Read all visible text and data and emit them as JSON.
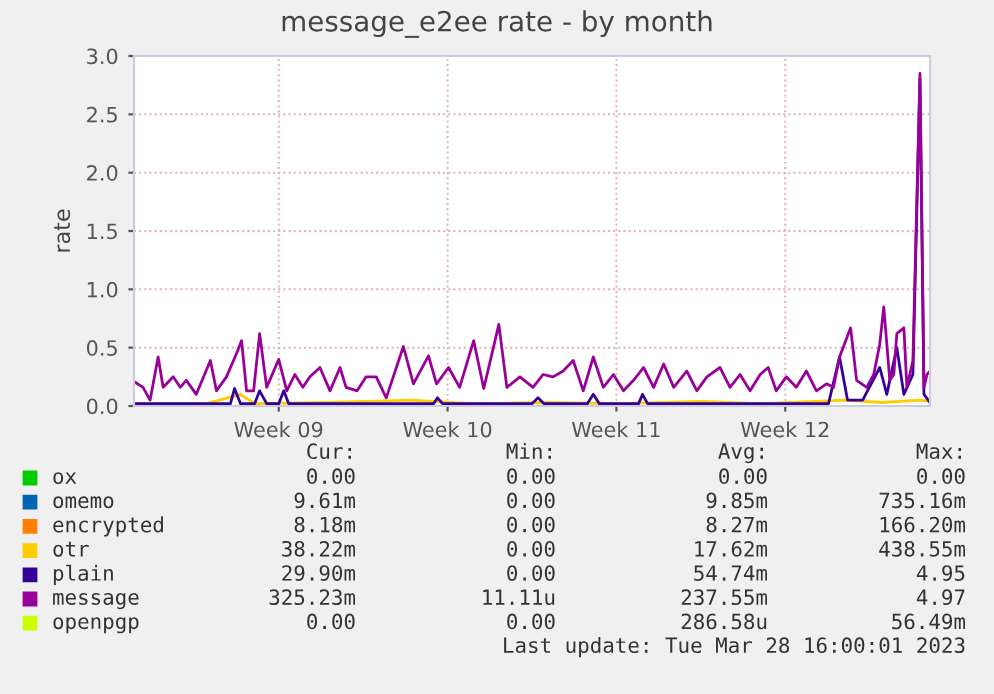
{
  "chart_data": {
    "type": "line",
    "title": "message_e2ee rate - by month",
    "ylabel": "rate",
    "xlim": [
      "2023-02-24T00:00",
      "2023-03-29T00:00"
    ],
    "xticks": [
      {
        "value": "2023-03-02T00:00",
        "label": "Week 09"
      },
      {
        "value": "2023-03-09T00:00",
        "label": "Week 10"
      },
      {
        "value": "2023-03-16T00:00",
        "label": "Week 11"
      },
      {
        "value": "2023-03-23T00:00",
        "label": "Week 12"
      }
    ],
    "ylim": [
      0,
      3
    ],
    "yticks": [
      {
        "value": 0,
        "label": "0.0"
      },
      {
        "value": 0.5,
        "label": "0.5"
      },
      {
        "value": 1,
        "label": "1.0"
      },
      {
        "value": 1.5,
        "label": "1.5"
      },
      {
        "value": 2,
        "label": "2.0"
      },
      {
        "value": 2.5,
        "label": "2.5"
      },
      {
        "value": 3,
        "label": "3.0"
      }
    ],
    "grid": true,
    "legend": "bottom",
    "series": [
      {
        "name": "ox",
        "color": "#00cc00"
      },
      {
        "name": "omemo",
        "color": "#0066b3"
      },
      {
        "name": "encrypted",
        "color": "#ff8000"
      },
      {
        "name": "otr",
        "color": "#ffcc00",
        "x": [
          "2023-02-24T00:00",
          "2023-02-27T00:00",
          "2023-02-28T10:00",
          "2023-03-01T00:00",
          "2023-03-04T00:00",
          "2023-03-07T12:00",
          "2023-03-10T00:00",
          "2023-03-13T00:00",
          "2023-03-16T00:00",
          "2023-03-19T12:00",
          "2023-03-22T00:00",
          "2023-03-25T12:00",
          "2023-03-27T00:00",
          "2023-03-28T14:00",
          "2023-03-29T00:00"
        ],
        "values": [
          0.02,
          0.02,
          0.1,
          0.02,
          0.03,
          0.05,
          0.02,
          0.03,
          0.02,
          0.04,
          0.02,
          0.05,
          0.03,
          0.05,
          0.04
        ]
      },
      {
        "name": "plain",
        "color": "#330099",
        "x": [
          "2023-02-24T00:00",
          "2023-02-28T00:00",
          "2023-02-28T04:00",
          "2023-02-28T10:00",
          "2023-03-01T00:00",
          "2023-03-01T05:00",
          "2023-03-01T12:00",
          "2023-03-02T00:00",
          "2023-03-02T05:00",
          "2023-03-02T10:00",
          "2023-03-08T10:00",
          "2023-03-08T14:00",
          "2023-03-08T19:00",
          "2023-03-12T12:00",
          "2023-03-12T18:00",
          "2023-03-13T00:00",
          "2023-03-14T19:00",
          "2023-03-15T01:00",
          "2023-03-15T07:00",
          "2023-03-16T22:00",
          "2023-03-17T02:00",
          "2023-03-17T07:00",
          "2023-03-24T19:00",
          "2023-03-25T06:00",
          "2023-03-25T14:00",
          "2023-03-26T05:00",
          "2023-03-26T22:00",
          "2023-03-27T05:00",
          "2023-03-27T15:00",
          "2023-03-27T22:00",
          "2023-03-28T07:00",
          "2023-03-28T14:00",
          "2023-03-28T18:00",
          "2023-03-29T00:00"
        ],
        "values": [
          0.02,
          0.02,
          0.15,
          0.02,
          0.02,
          0.13,
          0.02,
          0.02,
          0.13,
          0.02,
          0.02,
          0.07,
          0.02,
          0.02,
          0.07,
          0.02,
          0.02,
          0.1,
          0.02,
          0.02,
          0.1,
          0.02,
          0.02,
          0.42,
          0.05,
          0.05,
          0.33,
          0.1,
          0.5,
          0.1,
          0.27,
          2.8,
          0.1,
          0.03
        ]
      },
      {
        "name": "message",
        "color": "#990099",
        "x": [
          "2023-02-24T00:00",
          "2023-02-24T09:00",
          "2023-02-24T16:00",
          "2023-02-25T00:00",
          "2023-02-25T05:00",
          "2023-02-25T15:00",
          "2023-02-25T22:00",
          "2023-02-26T04:00",
          "2023-02-26T14:00",
          "2023-02-27T04:00",
          "2023-02-27T10:00",
          "2023-02-27T20:00",
          "2023-02-28T06:00",
          "2023-02-28T11:00",
          "2023-02-28T16:00",
          "2023-02-28T23:00",
          "2023-03-01T05:00",
          "2023-03-01T12:00",
          "2023-03-02T00:00",
          "2023-03-02T08:00",
          "2023-03-02T16:00",
          "2023-03-03T00:00",
          "2023-03-03T07:00",
          "2023-03-03T17:00",
          "2023-03-04T03:00",
          "2023-03-04T13:00",
          "2023-03-04T19:00",
          "2023-03-05T06:00",
          "2023-03-05T15:00",
          "2023-03-06T01:00",
          "2023-03-06T11:00",
          "2023-03-07T04:00",
          "2023-03-07T14:00",
          "2023-03-08T05:00",
          "2023-03-08T13:00",
          "2023-03-09T01:00",
          "2023-03-09T12:00",
          "2023-03-10T02:00",
          "2023-03-10T12:00",
          "2023-03-11T03:00",
          "2023-03-11T11:00",
          "2023-03-12T00:00",
          "2023-03-12T13:00",
          "2023-03-12T23:00",
          "2023-03-13T09:00",
          "2023-03-13T19:00",
          "2023-03-14T05:00",
          "2023-03-14T15:00",
          "2023-03-15T01:00",
          "2023-03-15T11:00",
          "2023-03-15T21:00",
          "2023-03-16T07:00",
          "2023-03-16T17:00",
          "2023-03-17T03:00",
          "2023-03-17T13:00",
          "2023-03-17T23:00",
          "2023-03-18T09:00",
          "2023-03-18T22:00",
          "2023-03-19T08:00",
          "2023-03-19T18:00",
          "2023-03-20T07:00",
          "2023-03-20T17:00",
          "2023-03-21T03:00",
          "2023-03-21T13:00",
          "2023-03-21T23:00",
          "2023-03-22T07:00",
          "2023-03-22T15:00",
          "2023-03-23T01:00",
          "2023-03-23T11:00",
          "2023-03-23T21:00",
          "2023-03-24T07:00",
          "2023-03-24T17:00",
          "2023-03-25T00:00",
          "2023-03-25T06:00",
          "2023-03-25T17:00",
          "2023-03-25T23:00",
          "2023-03-26T09:00",
          "2023-03-26T16:00",
          "2023-03-26T22:00",
          "2023-03-27T02:00",
          "2023-03-27T08:00",
          "2023-03-27T12:00",
          "2023-03-27T15:00",
          "2023-03-27T22:00",
          "2023-03-28T01:00",
          "2023-03-28T07:00",
          "2023-03-28T14:00",
          "2023-03-28T18:00",
          "2023-03-28T21:00",
          "2023-03-29T00:00"
        ],
        "values": [
          0.21,
          0.16,
          0.05,
          0.42,
          0.16,
          0.25,
          0.16,
          0.22,
          0.1,
          0.39,
          0.13,
          0.25,
          0.45,
          0.56,
          0.13,
          0.13,
          0.62,
          0.16,
          0.4,
          0.13,
          0.27,
          0.16,
          0.25,
          0.33,
          0.13,
          0.33,
          0.16,
          0.13,
          0.25,
          0.25,
          0.07,
          0.51,
          0.19,
          0.43,
          0.19,
          0.33,
          0.16,
          0.56,
          0.15,
          0.7,
          0.16,
          0.25,
          0.16,
          0.27,
          0.25,
          0.3,
          0.39,
          0.13,
          0.42,
          0.16,
          0.27,
          0.13,
          0.22,
          0.33,
          0.16,
          0.36,
          0.16,
          0.3,
          0.13,
          0.25,
          0.33,
          0.16,
          0.27,
          0.13,
          0.27,
          0.33,
          0.13,
          0.25,
          0.16,
          0.3,
          0.13,
          0.19,
          0.16,
          0.42,
          0.67,
          0.22,
          0.16,
          0.27,
          0.53,
          0.85,
          0.22,
          0.27,
          0.62,
          0.67,
          0.16,
          0.39,
          2.85,
          0.16,
          0.27,
          0.3
        ]
      },
      {
        "name": "openpgp",
        "color": "#ccff00"
      }
    ],
    "annotations": [
      "Cur:",
      "Min:",
      "Avg:",
      "Max:",
      "0.00",
      "0.00",
      "0.00",
      "0.00",
      "9.61m",
      "0.00",
      "9.85m",
      "735.16m",
      "8.18m",
      "0.00",
      "8.27m",
      "166.20m",
      "38.22m",
      "0.00",
      "17.62m",
      "438.55m",
      "29.90m",
      "0.00",
      "54.74m",
      "4.95",
      "325.23m",
      "11.11u",
      "237.55m",
      "4.97",
      "0.00",
      "0.00",
      "286.58u",
      "56.49m",
      "Last update: Tue Mar 28 16:00:01 2023"
    ]
  }
}
